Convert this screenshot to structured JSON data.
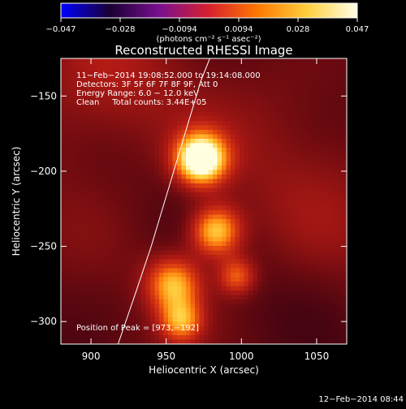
{
  "chart_data": {
    "type": "heatmap",
    "title": "Reconstructed RHESSI Image",
    "xlabel": "Heliocentric X (arcsec)",
    "ylabel": "Heliocentric Y (arcsec)",
    "xlim": [
      880,
      1070
    ],
    "ylim": [
      -315,
      -125
    ],
    "xticks": [
      900,
      950,
      1000,
      1050
    ],
    "xtick_labels": [
      "900",
      "950",
      "1000",
      "1050"
    ],
    "yticks": [
      -150,
      -200,
      -250,
      -300
    ],
    "ytick_labels": [
      "−150",
      "−200",
      "−250",
      "−300"
    ],
    "colorbar": {
      "range": [
        -0.047,
        0.047
      ],
      "colormap": "rhessi-hot",
      "colors": [
        "#0000ff",
        "#1a0033",
        "#7a1090",
        "#d8202e",
        "#ff7a00",
        "#ffd040",
        "#ffffe8"
      ],
      "tick_labels": [
        "−0.047",
        "−0.028",
        "−0.0094",
        "0.0094",
        "0.028",
        "0.047"
      ],
      "unit_label": "(photons cm⁻² s⁻¹ asec⁻²)"
    },
    "info_lines": [
      "11−Feb−2014 19:08:52.000 to 19:14:08.000",
      "Detectors: 3F 5F 6F 7F 8F 9F, Att 0",
      "Energy Range: 6.0 − 12.0 keV",
      "Clean     Total counts: 3.44E+05"
    ],
    "peak_label": "Position of Peak = [973,−192]",
    "peak": [
      973,
      -192
    ],
    "sources": [
      {
        "x": 973,
        "y": -192,
        "sigma": 12,
        "amp": 1.0
      },
      {
        "x": 983,
        "y": -240,
        "sigma": 12,
        "amp": 0.72
      },
      {
        "x": 955,
        "y": -275,
        "sigma": 13,
        "amp": 0.62
      },
      {
        "x": 960,
        "y": -300,
        "sigma": 10,
        "amp": 0.5
      },
      {
        "x": 997,
        "y": -270,
        "sigma": 9,
        "amp": 0.45
      },
      {
        "x": 905,
        "y": -150,
        "sigma": 40,
        "amp": 0.22
      },
      {
        "x": 1045,
        "y": -200,
        "sigma": 50,
        "amp": 0.12
      }
    ],
    "limb": [
      [
        918,
        -315
      ],
      [
        930,
        -280
      ],
      [
        940,
        -250
      ],
      [
        952,
        -210
      ],
      [
        964,
        -170
      ],
      [
        973,
        -140
      ],
      [
        979,
        -125
      ]
    ]
  },
  "timestamp": "12−Feb−2014 08:44"
}
